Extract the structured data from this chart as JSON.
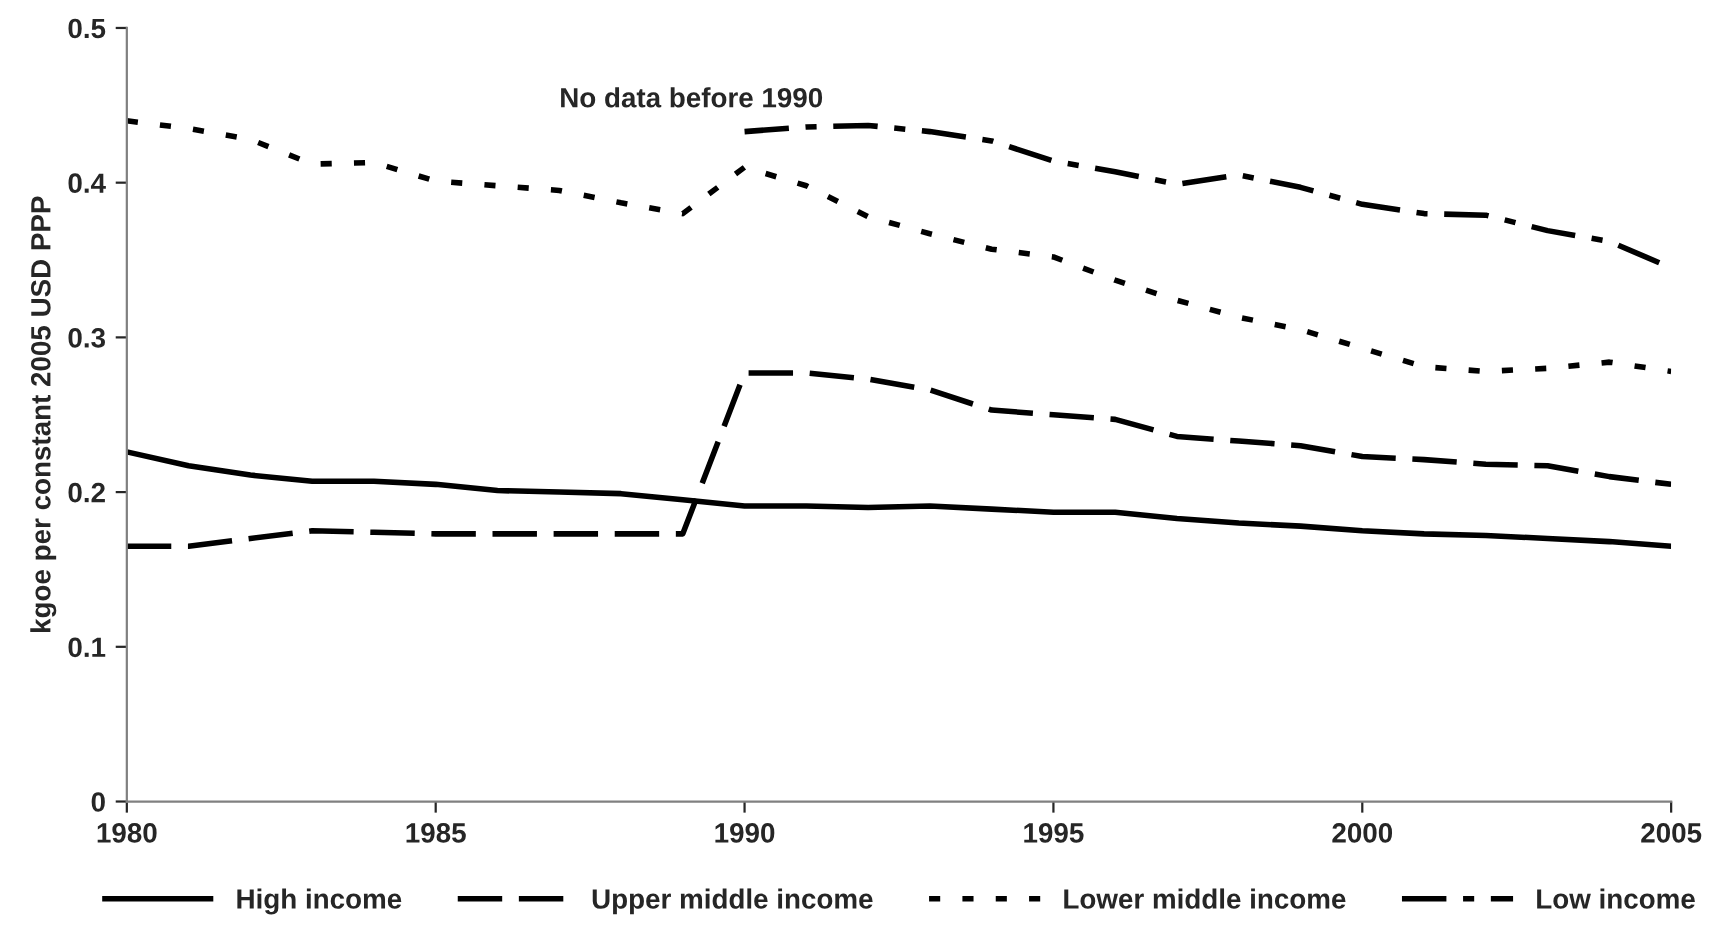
{
  "chart_data": {
    "type": "line",
    "ylabel": "kgoe per constant 2005 USD PPP",
    "x": [
      1980,
      1981,
      1982,
      1983,
      1984,
      1985,
      1986,
      1987,
      1988,
      1989,
      1990,
      1991,
      1992,
      1993,
      1994,
      1995,
      1996,
      1997,
      1998,
      1999,
      2000,
      2001,
      2002,
      2003,
      2004,
      2005
    ],
    "series": [
      {
        "name": "High income",
        "color": "#000000",
        "line_style": "solid",
        "values": [
          0.226,
          0.217,
          0.211,
          0.207,
          0.207,
          0.205,
          0.201,
          0.2,
          0.199,
          0.195,
          0.191,
          0.191,
          0.19,
          0.191,
          0.189,
          0.187,
          0.187,
          0.183,
          0.18,
          0.178,
          0.175,
          0.173,
          0.172,
          0.17,
          0.168,
          0.165
        ]
      },
      {
        "name": "Upper middle income",
        "color": "#000000",
        "line_style": "dashed",
        "values": [
          0.165,
          0.165,
          0.17,
          0.175,
          0.174,
          0.173,
          0.173,
          0.173,
          0.173,
          0.173,
          0.277,
          0.277,
          0.273,
          0.266,
          0.253,
          0.25,
          0.247,
          0.236,
          0.233,
          0.23,
          0.223,
          0.221,
          0.218,
          0.217,
          0.21,
          0.205
        ]
      },
      {
        "name": "Lower middle income",
        "color": "#000000",
        "line_style": "dotted",
        "values": [
          0.44,
          0.435,
          0.428,
          0.412,
          0.413,
          0.401,
          0.398,
          0.395,
          0.387,
          0.38,
          0.41,
          0.398,
          0.378,
          0.367,
          0.357,
          0.352,
          0.337,
          0.324,
          0.313,
          0.305,
          0.293,
          0.281,
          0.278,
          0.28,
          0.284,
          0.278
        ]
      },
      {
        "name": "Low income",
        "color": "#000000",
        "line_style": "dashdot",
        "values": [
          null,
          null,
          null,
          null,
          null,
          null,
          null,
          null,
          null,
          null,
          0.433,
          0.436,
          0.437,
          0.433,
          0.427,
          0.414,
          0.407,
          0.399,
          0.405,
          0.397,
          0.386,
          0.38,
          0.379,
          0.369,
          0.362,
          0.345
        ]
      }
    ],
    "annotations": [
      "No data before 1990"
    ],
    "xlim": [
      1980,
      2005
    ],
    "xticks": [
      1980,
      1985,
      1990,
      1995,
      2000,
      2005
    ],
    "ylim": [
      0,
      0.5
    ],
    "yticks": [
      0,
      0.1,
      0.2,
      0.3,
      0.4,
      0.5
    ],
    "grid": false,
    "legend": "bottom",
    "marker": "none"
  }
}
